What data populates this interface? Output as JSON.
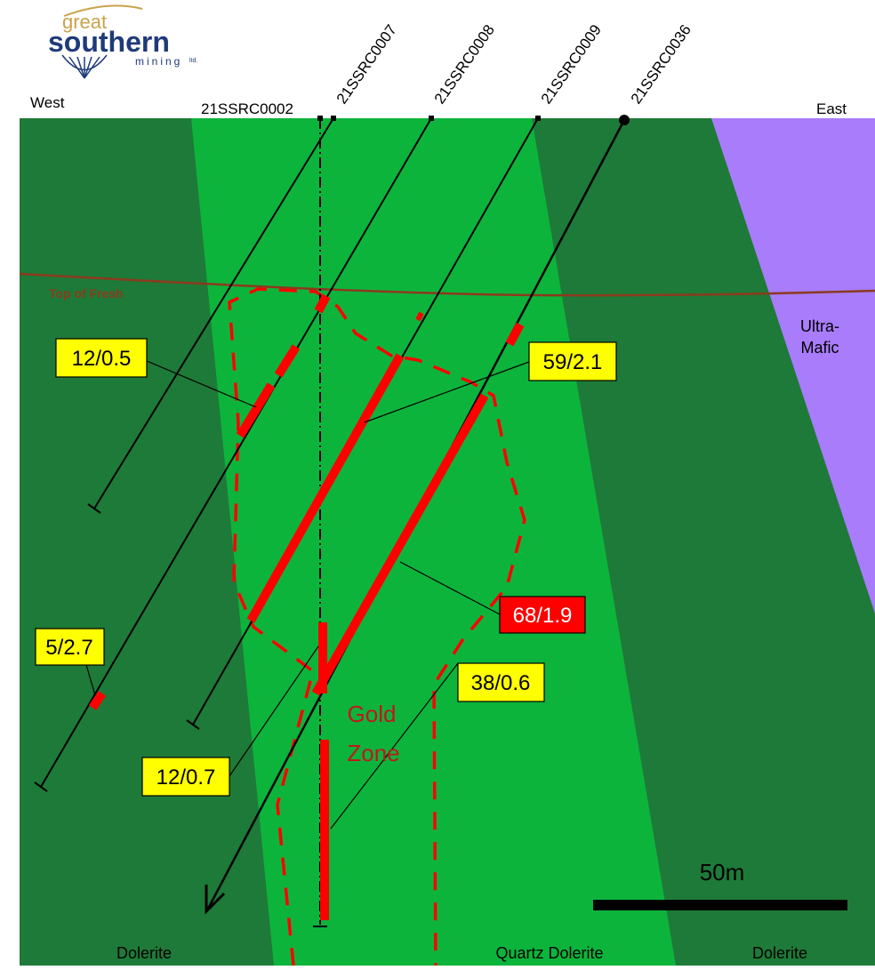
{
  "logo": {
    "line1": "great",
    "line2": "southern",
    "line3": "mining",
    "suffix": "ltd."
  },
  "orientation": {
    "west": "West",
    "east": "East"
  },
  "holes": [
    {
      "id": "21SSRC0002"
    },
    {
      "id": "21SSRC0007"
    },
    {
      "id": "21SSRC0008"
    },
    {
      "id": "21SSRC0009"
    },
    {
      "id": "21SSRC0036"
    }
  ],
  "units": {
    "top_of_fresh": "Top of Fresh",
    "ultramafic_line1": "Ultra-",
    "ultramafic_line2": "Mafic",
    "dolerite_west": "Dolerite",
    "quartz_dolerite": "Quartz Dolerite",
    "dolerite_east": "Dolerite"
  },
  "gold_zone": {
    "line1": "Gold",
    "line2": "Zone"
  },
  "intercepts": [
    {
      "id": "i1",
      "text": "12/0.5",
      "highlight": "yellow"
    },
    {
      "id": "i2",
      "text": "59/2.1",
      "highlight": "yellow"
    },
    {
      "id": "i3",
      "text": "5/2.7",
      "highlight": "yellow"
    },
    {
      "id": "i4",
      "text": "68/1.9",
      "highlight": "red"
    },
    {
      "id": "i5",
      "text": "12/0.7",
      "highlight": "yellow"
    },
    {
      "id": "i6",
      "text": "38/0.6",
      "highlight": "yellow"
    }
  ],
  "scale_bar": {
    "label": "50m"
  },
  "colors": {
    "dark_green": "#1e7a38",
    "light_green": "#0db43c",
    "ultramafic": "#a87cfa",
    "red": "#ff0000",
    "yellow": "#ffff00",
    "top_of_fresh": "#8b3a1e",
    "gold_zone_text": "#c0171b"
  }
}
